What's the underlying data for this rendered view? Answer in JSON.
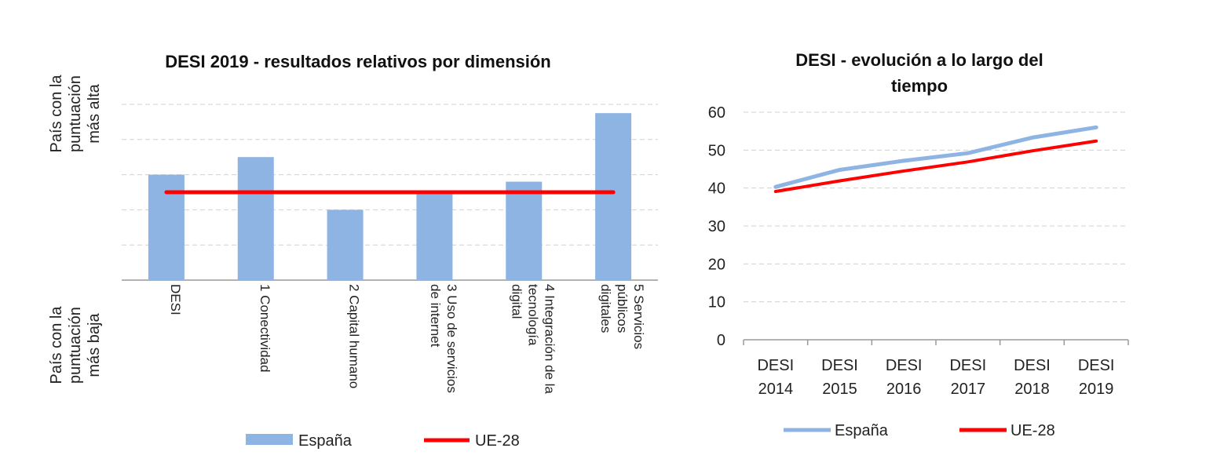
{
  "colors": {
    "espana": "#8eb4e3",
    "ue28": "#ff0000",
    "grid": "#d0d0d0",
    "axis": "#9a9a9a"
  },
  "chart_data": [
    {
      "type": "bar",
      "title": "DESI 2019 - resultados relativos por dimensión",
      "ylabel_top": [
        "País con la",
        "puntuación",
        "más alta"
      ],
      "ylabel_bottom": [
        "País con la",
        "puntuación",
        "más baja"
      ],
      "categories": [
        [
          "DESI"
        ],
        [
          "1 Conectividad"
        ],
        [
          "2 Capital humano"
        ],
        [
          "3 Uso de servicios",
          "de internet"
        ],
        [
          "4 Integración de la",
          "tecnología",
          "digital"
        ],
        [
          "5 Servicios",
          "públicos",
          "digitales"
        ]
      ],
      "series": [
        {
          "name": "España",
          "type": "bar",
          "values": [
            0.6,
            0.7,
            0.4,
            0.5,
            0.56,
            0.95
          ]
        },
        {
          "name": "UE-28",
          "type": "line",
          "values": [
            0.5,
            0.5,
            0.5,
            0.5,
            0.5,
            0.5
          ]
        }
      ],
      "ylim": [
        0,
        1
      ],
      "grid": true,
      "legend": "bottom"
    },
    {
      "type": "line",
      "title": [
        "DESI - evolución a lo largo del",
        "tiempo"
      ],
      "categories": [
        [
          "DESI",
          "2014"
        ],
        [
          "DESI",
          "2015"
        ],
        [
          "DESI",
          "2016"
        ],
        [
          "DESI",
          "2017"
        ],
        [
          "DESI",
          "2018"
        ],
        [
          "DESI",
          "2019"
        ]
      ],
      "series": [
        {
          "name": "España",
          "values": [
            40.3,
            44.8,
            47.2,
            49.2,
            53.3,
            56.0
          ]
        },
        {
          "name": "UE-28",
          "values": [
            39.1,
            41.9,
            44.5,
            46.9,
            49.8,
            52.4
          ]
        }
      ],
      "yticks": [
        "0",
        "10",
        "20",
        "30",
        "40",
        "50",
        "60"
      ],
      "ylim": [
        0,
        60
      ],
      "grid": true,
      "legend": "bottom"
    }
  ]
}
